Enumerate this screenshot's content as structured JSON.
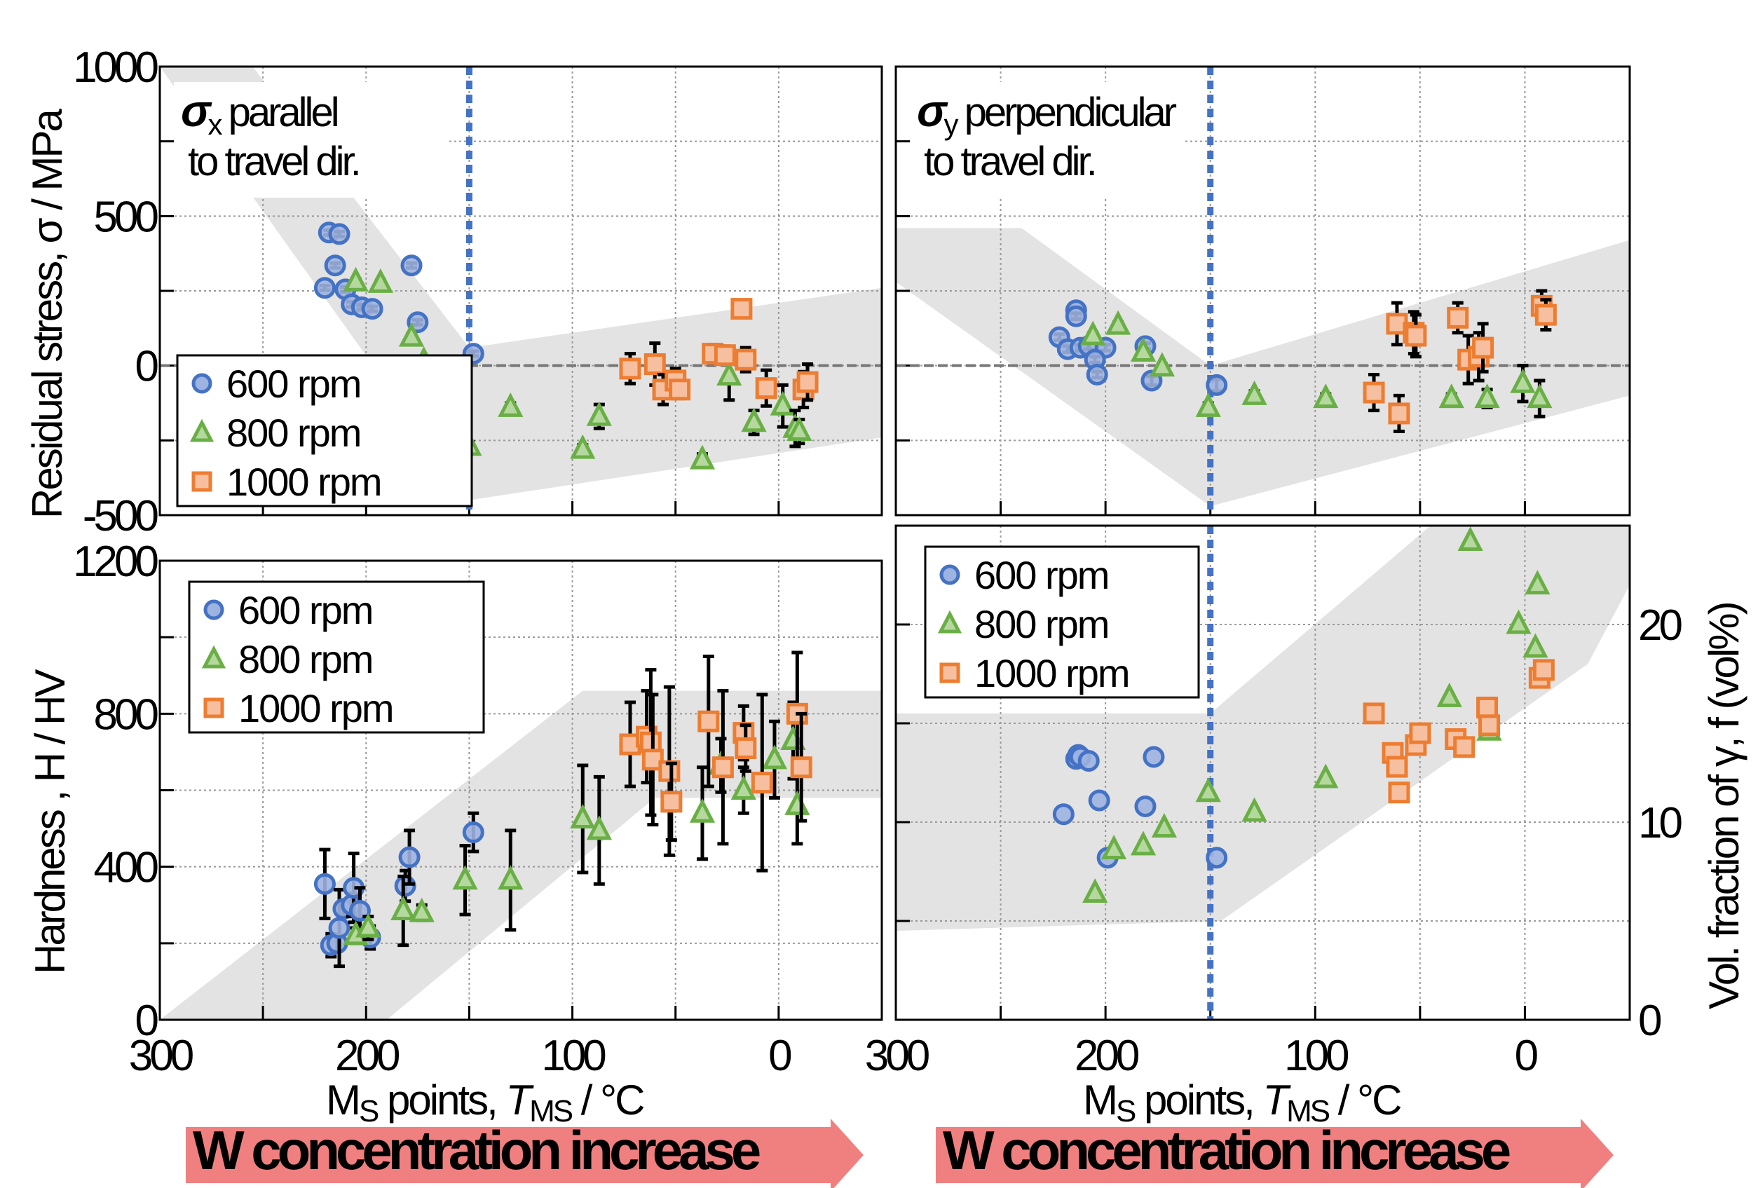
{
  "figure": {
    "x_axis_label_main": "M",
    "x_axis_label_sub": "S",
    "x_axis_label_rest": " points, ",
    "x_axis_label_T": "T",
    "x_axis_label_T_sub": "MS",
    "x_axis_label_unit": " / °C",
    "arrow_text": "W concentration increase",
    "colors": {
      "rpm600_edge": "#4472C4",
      "rpm600_fill": "#9DB3E0",
      "rpm800_edge": "#6AAF45",
      "rpm800_fill": "#B5D89E",
      "rpm1000_edge": "#ED7D31",
      "rpm1000_fill": "#F6C0A0",
      "band": "#E3E3E3",
      "ms_line": "#4472C4",
      "arrow": "#F08080"
    }
  },
  "chart_data": [
    {
      "id": "sigma_x",
      "type": "scatter",
      "title_symbol": "σ",
      "title_sub": "x",
      "title_line1": " parallel",
      "title_line2": "to travel dir.",
      "ylabel": "Residual stress, σ / MPa",
      "xlabel": "Ms points, TMS / °C",
      "xlim": [
        300,
        -50
      ],
      "ylim": [
        -500,
        1000
      ],
      "x_ticks": [
        "300",
        "200",
        "100",
        "0"
      ],
      "y_ticks": [
        "1000",
        "500",
        "0",
        "-500"
      ],
      "grid": true,
      "legend": {
        "position": "bottom-left",
        "entries": [
          "600 rpm",
          "800 rpm",
          "1000 rpm"
        ]
      },
      "ms_reference_line_x": 150,
      "series": [
        {
          "name": "600 rpm",
          "marker": "circle",
          "points": [
            [
              218,
              445,
              8
            ],
            [
              213,
              440,
              8
            ],
            [
              215,
              335,
              8
            ],
            [
              220,
              260,
              8
            ],
            [
              210,
              255,
              8
            ],
            [
              207,
              205,
              8
            ],
            [
              202,
              195,
              8
            ],
            [
              197,
              190,
              8
            ],
            [
              178,
              335,
              8
            ],
            [
              175,
              145,
              8
            ],
            [
              148,
              40,
              8
            ]
          ]
        },
        {
          "name": "800 rpm",
          "marker": "triangle",
          "points": [
            [
              205,
              280,
              10
            ],
            [
              193,
              275,
              10
            ],
            [
              178,
              95,
              10
            ],
            [
              172,
              15,
              15
            ],
            [
              150,
              -270,
              15
            ],
            [
              130,
              -140,
              15
            ],
            [
              95,
              -280,
              15
            ],
            [
              87,
              -170,
              40
            ],
            [
              37,
              -315,
              20
            ],
            [
              24,
              -35,
              80
            ],
            [
              12,
              -190,
              40
            ],
            [
              -2,
              -135,
              70
            ],
            [
              -8,
              -210,
              60
            ],
            [
              -10,
              -220,
              40
            ]
          ]
        },
        {
          "name": "1000 rpm",
          "marker": "square",
          "points": [
            [
              72,
              -10,
              50
            ],
            [
              60,
              5,
              70
            ],
            [
              56,
              -80,
              50
            ],
            [
              50,
              -50,
              40
            ],
            [
              48,
              -80,
              30
            ],
            [
              32,
              40,
              30
            ],
            [
              26,
              35,
              30
            ],
            [
              18,
              190,
              10
            ],
            [
              16,
              20,
              40
            ],
            [
              6,
              -75,
              60
            ],
            [
              -12,
              -80,
              60
            ],
            [
              -14,
              -55,
              60
            ]
          ]
        }
      ]
    },
    {
      "id": "sigma_y",
      "type": "scatter",
      "title_symbol": "σ",
      "title_sub": "y",
      "title_line1": " perpendicular",
      "title_line2": "to travel dir.",
      "ylabel": "",
      "xlabel": "Ms points, TMS / °C",
      "xlim": [
        300,
        -50
      ],
      "ylim": [
        -500,
        1000
      ],
      "x_ticks": [
        "300",
        "200",
        "100",
        "0"
      ],
      "y_ticks": [],
      "grid": true,
      "legend": null,
      "ms_reference_line_x": 150,
      "series": [
        {
          "name": "600 rpm",
          "marker": "circle",
          "points": [
            [
              214,
              185,
              10
            ],
            [
              214,
              165,
              10
            ],
            [
              222,
              95,
              10
            ],
            [
              218,
              55,
              10
            ],
            [
              212,
              60,
              10
            ],
            [
              208,
              65,
              10
            ],
            [
              200,
              60,
              10
            ],
            [
              205,
              20,
              10
            ],
            [
              204,
              -30,
              10
            ],
            [
              181,
              65,
              10
            ],
            [
              178,
              -50,
              15
            ],
            [
              147,
              -65,
              20
            ]
          ]
        },
        {
          "name": "800 rpm",
          "marker": "triangle",
          "points": [
            [
              206,
              100,
              10
            ],
            [
              194,
              135,
              10
            ],
            [
              182,
              45,
              10
            ],
            [
              173,
              -5,
              10
            ],
            [
              151,
              -140,
              15
            ],
            [
              129,
              -100,
              15
            ],
            [
              95,
              -110,
              15
            ],
            [
              35,
              -110,
              15
            ],
            [
              18,
              -110,
              30
            ],
            [
              1,
              -60,
              60
            ],
            [
              -7,
              -110,
              60
            ]
          ]
        },
        {
          "name": "1000 rpm",
          "marker": "square",
          "points": [
            [
              72,
              -90,
              60
            ],
            [
              61,
              140,
              70
            ],
            [
              60,
              -160,
              60
            ],
            [
              53,
              110,
              70
            ],
            [
              52,
              100,
              70
            ],
            [
              32,
              160,
              50
            ],
            [
              27,
              20,
              80
            ],
            [
              22,
              30,
              80
            ],
            [
              20,
              60,
              80
            ],
            [
              -8,
              200,
              50
            ],
            [
              -10,
              170,
              50
            ]
          ]
        }
      ]
    },
    {
      "id": "hardness",
      "type": "scatter",
      "ylabel": "Hardness , H / HV",
      "xlabel": "Ms points, TMS / °C",
      "xlim": [
        300,
        -50
      ],
      "ylim": [
        0,
        1200
      ],
      "x_ticks": [
        "300",
        "200",
        "100",
        "0"
      ],
      "y_ticks": [
        "1200",
        "800",
        "400",
        "0"
      ],
      "grid": true,
      "legend": {
        "position": "top-left",
        "entries": [
          "600 rpm",
          "800 rpm",
          "1000 rpm"
        ]
      },
      "series": [
        {
          "name": "600 rpm",
          "marker": "circle",
          "points": [
            [
              220,
              355,
              90
            ],
            [
              217,
              195,
              30
            ],
            [
              214,
              200,
              20
            ],
            [
              213,
              240,
              100
            ],
            [
              211,
              290,
              20
            ],
            [
              207,
              300,
              30
            ],
            [
              206,
              345,
              90
            ],
            [
              203,
              285,
              60
            ],
            [
              198,
              215,
              30
            ],
            [
              181,
              350,
              40
            ],
            [
              179,
              425,
              70
            ],
            [
              148,
              490,
              50
            ]
          ]
        },
        {
          "name": "800 rpm",
          "marker": "triangle",
          "points": [
            [
              205,
              220,
              20
            ],
            [
              199,
              240,
              30
            ],
            [
              182,
              285,
              90
            ],
            [
              173,
              280,
              20
            ],
            [
              152,
              365,
              90
            ],
            [
              130,
              365,
              130
            ],
            [
              95,
              525,
              140
            ],
            [
              87,
              495,
              140
            ],
            [
              37,
              540,
              120
            ],
            [
              28,
              665,
              70
            ],
            [
              17,
              600,
              60
            ],
            [
              2,
              680,
              100
            ],
            [
              -7,
              730,
              100
            ],
            [
              -9,
              560,
              100
            ]
          ]
        },
        {
          "name": "1000 rpm",
          "marker": "square",
          "points": [
            [
              72,
              720,
              110
            ],
            [
              64,
              740,
              120
            ],
            [
              62,
              725,
              190
            ],
            [
              61,
              680,
              170
            ],
            [
              53,
              650,
              220
            ],
            [
              52,
              570,
              100
            ],
            [
              34,
              780,
              170
            ],
            [
              27,
              660,
              200
            ],
            [
              17,
              750,
              70
            ],
            [
              16,
              710,
              60
            ],
            [
              8,
              620,
              230
            ],
            [
              -9,
              800,
              160
            ],
            [
              -11,
              660,
              140
            ]
          ]
        }
      ]
    },
    {
      "id": "gamma_fraction",
      "type": "scatter",
      "ylabel": "Vol. fraction of γ,  f  (vol%)",
      "y_axis_side": "right",
      "xlabel": "Ms points, TMS / °C",
      "xlim": [
        300,
        -50
      ],
      "ylim": [
        0,
        25
      ],
      "x_ticks": [
        "300",
        "200",
        "100",
        "0"
      ],
      "y_ticks": [
        "20",
        "10",
        "0"
      ],
      "grid": true,
      "legend": {
        "position": "top-left",
        "entries": [
          "600 rpm",
          "800 rpm",
          "1000 rpm"
        ]
      },
      "ms_reference_line_x": 150,
      "series": [
        {
          "name": "600 rpm",
          "marker": "circle",
          "points": [
            [
              220,
              10.4
            ],
            [
              214,
              13.2
            ],
            [
              213,
              13.4
            ],
            [
              212,
              13.3
            ],
            [
              208,
              13.1
            ],
            [
              203,
              11.1
            ],
            [
              199,
              8.2
            ],
            [
              181,
              10.8
            ],
            [
              177,
              13.3
            ],
            [
              147,
              8.2
            ]
          ]
        },
        {
          "name": "800 rpm",
          "marker": "triangle",
          "points": [
            [
              205,
              6.4
            ],
            [
              196,
              8.6
            ],
            [
              182,
              8.8
            ],
            [
              172,
              9.7
            ],
            [
              151,
              11.5
            ],
            [
              129,
              10.5
            ],
            [
              95,
              12.2
            ],
            [
              36,
              16.3
            ],
            [
              26,
              24.2
            ],
            [
              17,
              14.6
            ],
            [
              3,
              20.0
            ],
            [
              -6,
              22.0
            ],
            [
              -5,
              18.8
            ]
          ]
        },
        {
          "name": "1000 rpm",
          "marker": "square",
          "points": [
            [
              72,
              15.5
            ],
            [
              63,
              13.5
            ],
            [
              61,
              12.8
            ],
            [
              60,
              11.5
            ],
            [
              52,
              13.9
            ],
            [
              50,
              14.5
            ],
            [
              33,
              14.2
            ],
            [
              29,
              13.8
            ],
            [
              18,
              15.8
            ],
            [
              17,
              14.9
            ],
            [
              -7,
              17.3
            ],
            [
              -9,
              17.7
            ]
          ]
        }
      ]
    }
  ]
}
